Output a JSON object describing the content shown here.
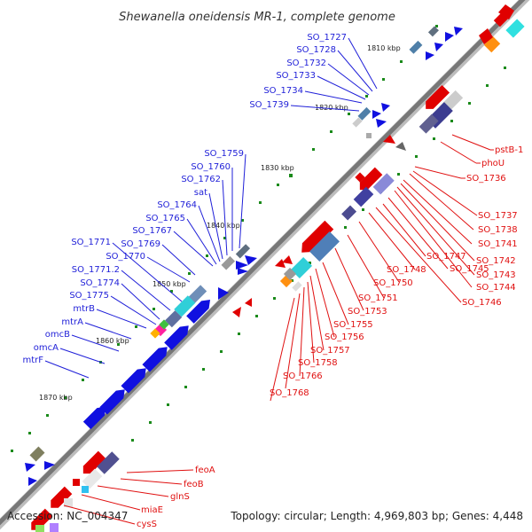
{
  "title": "Shewanella oneidensis MR-1, complete genome",
  "footer": {
    "accession": "Accession: NC_004347",
    "topology": "Topology: circular; Length: 4,969,803 bp; Genes: 4,448"
  },
  "scale_labels": [
    "1810 kbp",
    "1820 kbp",
    "1830 kbp",
    "1840 kbp",
    "1850 kbp",
    "1860 kbp",
    "1870 kbp"
  ],
  "labels_blue": [
    "SO_1727",
    "SO_1728",
    "SO_1732",
    "SO_1733",
    "SO_1734",
    "SO_1739",
    "SO_1759",
    "SO_1760",
    "SO_1762",
    "sat",
    "SO_1764",
    "SO_1765",
    "SO_1767",
    "SO_1771",
    "SO_1769",
    "SO_1770",
    "SO_1771.2",
    "SO_1774",
    "SO_1775",
    "mtrB",
    "mtrA",
    "omcB",
    "omcA",
    "mtrF"
  ],
  "labels_red": [
    "pstB-1",
    "phoU",
    "SO_1736",
    "SO_1737",
    "SO_1738",
    "SO_1741",
    "SO_1742",
    "SO_1743",
    "SO_1744",
    "SO_1745",
    "SO_1747",
    "SO_1746",
    "SO_1748",
    "SO_1750",
    "SO_1751",
    "SO_1753",
    "SO_1755",
    "SO_1756",
    "SO_1757",
    "SO_1758",
    "SO_1766",
    "SO_1768",
    "feoA",
    "feoB",
    "glnS",
    "miaE",
    "cysS"
  ],
  "colors": {
    "backbone": "#777777",
    "forward_gene": "#1010e0",
    "reverse_gene": "#e00000",
    "blue_label": "#1f1fd8",
    "red_label": "#e01010",
    "tick": "#1a8a1a"
  }
}
